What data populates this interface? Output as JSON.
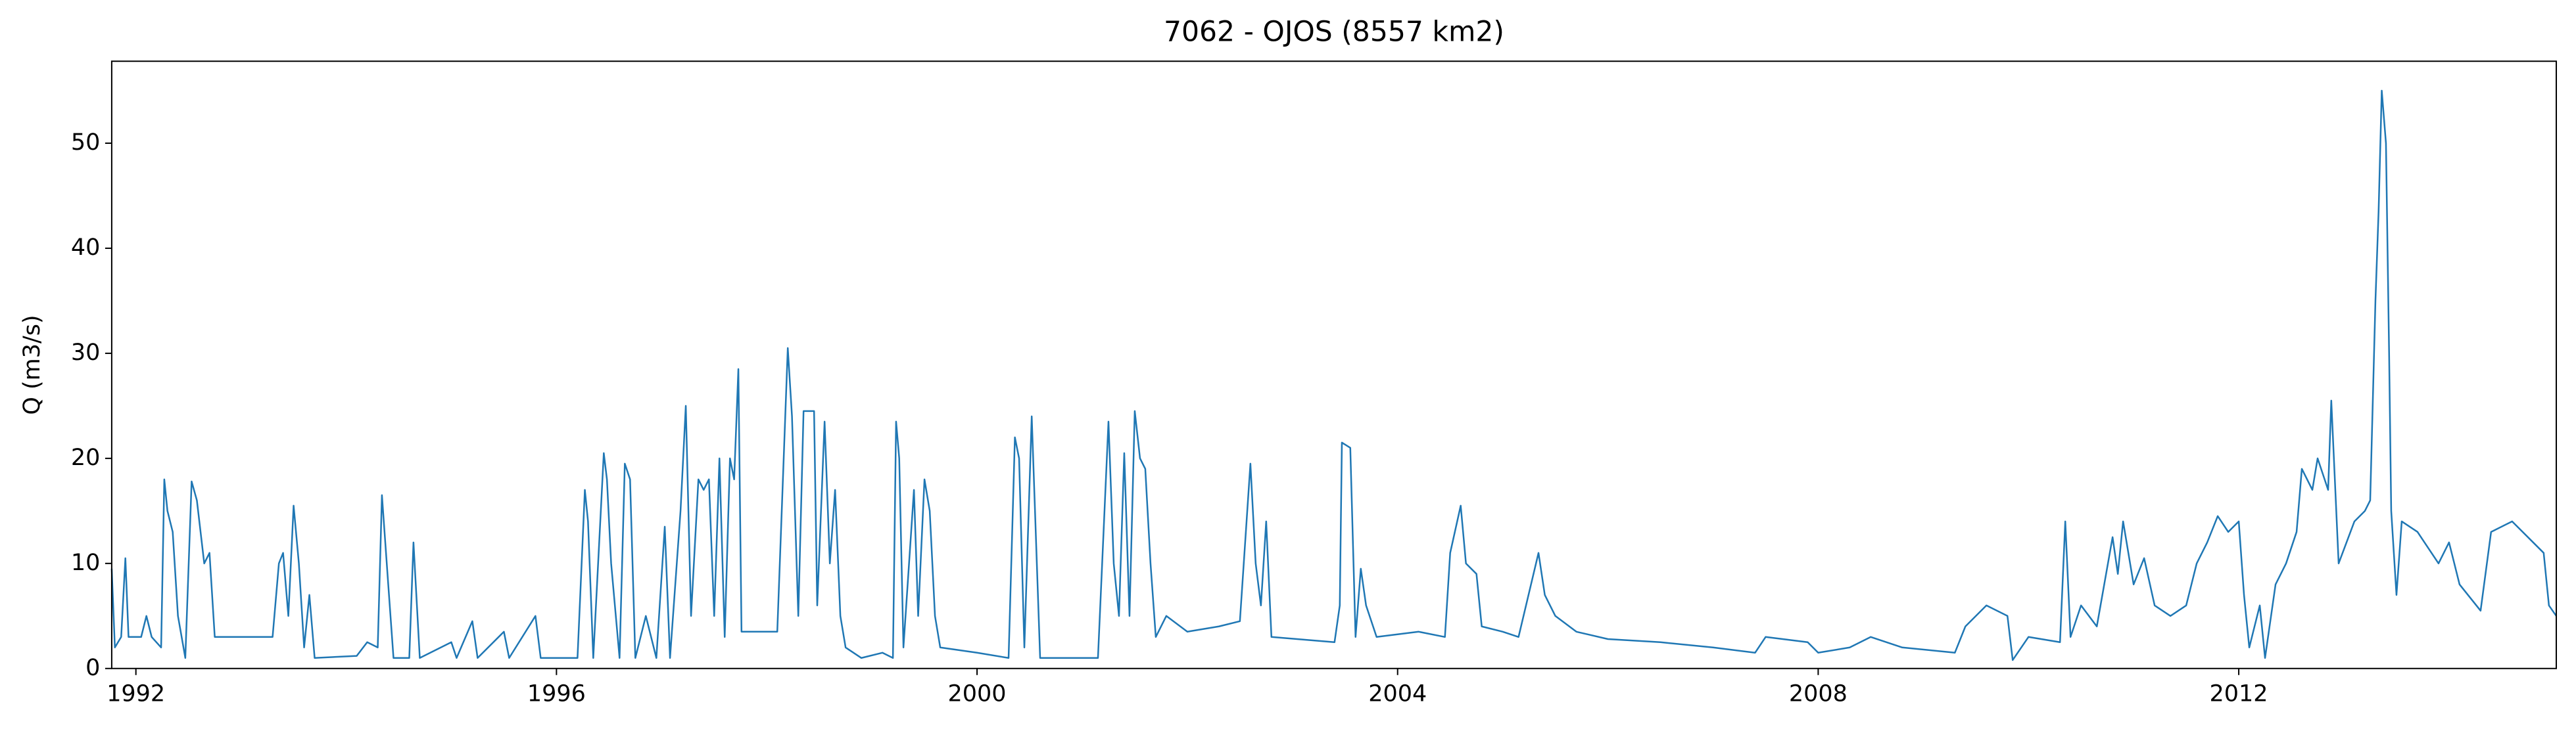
{
  "chart_data": {
    "type": "line",
    "title": "7062 - OJOS (8557 km2)",
    "ylabel": "Q (m3/s)",
    "x": [
      1991.77,
      1991.8,
      1991.86,
      1991.9,
      1991.93,
      1992.05,
      1992.1,
      1992.15,
      1992.24,
      1992.27,
      1992.3,
      1992.35,
      1992.4,
      1992.47,
      1992.53,
      1992.58,
      1992.65,
      1992.7,
      1992.75,
      1993.3,
      1993.36,
      1993.4,
      1993.45,
      1993.5,
      1993.55,
      1993.6,
      1993.65,
      1993.7,
      1994.1,
      1994.2,
      1994.3,
      1994.34,
      1994.4,
      1994.45,
      1994.6,
      1994.64,
      1994.7,
      1995,
      1995.05,
      1995.2,
      1995.25,
      1995.5,
      1995.55,
      1995.8,
      1995.85,
      1996.2,
      1996.27,
      1996.3,
      1996.35,
      1996.45,
      1996.48,
      1996.52,
      1996.6,
      1996.65,
      1996.7,
      1996.75,
      1996.85,
      1996.95,
      1997.03,
      1997.08,
      1997.18,
      1997.23,
      1997.28,
      1997.35,
      1997.4,
      1997.45,
      1997.5,
      1997.55,
      1997.6,
      1997.65,
      1997.69,
      1997.73,
      1997.76,
      1998.1,
      1998.2,
      1998.24,
      1998.3,
      1998.35,
      1998.45,
      1998.48,
      1998.55,
      1998.6,
      1998.65,
      1998.7,
      1998.75,
      1998.9,
      1999.1,
      1999.2,
      1999.23,
      1999.26,
      1999.3,
      1999.4,
      1999.44,
      1999.5,
      1999.55,
      1999.6,
      1999.65,
      2000,
      2000.3,
      2000.36,
      2000.4,
      2000.45,
      2000.52,
      2000.6,
      2001.15,
      2001.25,
      2001.3,
      2001.35,
      2001.4,
      2001.45,
      2001.5,
      2001.55,
      2001.6,
      2001.65,
      2001.7,
      2001.8,
      2002,
      2002.3,
      2002.5,
      2002.6,
      2002.65,
      2002.7,
      2002.75,
      2002.8,
      2003.4,
      2003.45,
      2003.47,
      2003.55,
      2003.6,
      2003.65,
      2003.7,
      2003.8,
      2004.2,
      2004.45,
      2004.5,
      2004.6,
      2004.65,
      2004.75,
      2004.8,
      2005,
      2005.15,
      2005.34,
      2005.4,
      2005.5,
      2005.7,
      2006,
      2006.5,
      2007,
      2007.4,
      2007.5,
      2007.9,
      2008,
      2008.3,
      2008.5,
      2008.8,
      2009.3,
      2009.4,
      2009.6,
      2009.8,
      2009.85,
      2010,
      2010.3,
      2010.35,
      2010.4,
      2010.5,
      2010.65,
      2010.8,
      2010.85,
      2010.9,
      2011,
      2011.1,
      2011.2,
      2011.35,
      2011.5,
      2011.6,
      2011.7,
      2011.8,
      2011.9,
      2012,
      2012.05,
      2012.1,
      2012.2,
      2012.25,
      2012.35,
      2012.45,
      2012.55,
      2012.6,
      2012.7,
      2012.75,
      2012.85,
      2012.88,
      2012.95,
      2013.1,
      2013.2,
      2013.25,
      2013.3,
      2013.33,
      2013.36,
      2013.4,
      2013.43,
      2013.45,
      2013.5,
      2013.55,
      2013.7,
      2013.9,
      2014,
      2014.1,
      2014.3,
      2014.4,
      2014.6,
      2014.8,
      2014.9,
      2014.95,
      2015.02
    ],
    "series": [
      {
        "color": "#1f77b4",
        "values": [
          9.5,
          2,
          3,
          10.5,
          3,
          3,
          5,
          3,
          2,
          18,
          15,
          13,
          5,
          1,
          17.8,
          16,
          10,
          11,
          3,
          3,
          10,
          11,
          5,
          15.5,
          10,
          2,
          7,
          1,
          1.2,
          2.5,
          2,
          16.5,
          8,
          1,
          1,
          12,
          1,
          2.5,
          1,
          4.5,
          1,
          3.5,
          1,
          5,
          1,
          1,
          17,
          14,
          1,
          20.5,
          18,
          10,
          1,
          19.5,
          18,
          1,
          5,
          1,
          13.5,
          1,
          15,
          25,
          5,
          18,
          17,
          18,
          5,
          20,
          3,
          20,
          18,
          28.5,
          3.5,
          3.5,
          30.5,
          24,
          5,
          24.5,
          24.5,
          6,
          23.5,
          10,
          17,
          5,
          2,
          1,
          1.5,
          1,
          23.5,
          20,
          2,
          17,
          5,
          18,
          15,
          5,
          2,
          1.5,
          1,
          22,
          20,
          2,
          24,
          1,
          1,
          23.5,
          10,
          5,
          20.5,
          5,
          24.5,
          20,
          19,
          10,
          3,
          5,
          3.5,
          4,
          4.5,
          19.5,
          10,
          6,
          14,
          3,
          2.5,
          6,
          21.5,
          21,
          3,
          9.5,
          6,
          3,
          3.5,
          3,
          11,
          15.5,
          10,
          9,
          4,
          3.5,
          3,
          11,
          7,
          5,
          3.5,
          2.8,
          2.5,
          2,
          1.5,
          3,
          2.5,
          1.5,
          2,
          3,
          2,
          1.5,
          4,
          6,
          5,
          0.8,
          3,
          2.5,
          14,
          3,
          6,
          4,
          12.5,
          9,
          14,
          8,
          10.5,
          6,
          5,
          6,
          10,
          12,
          14.5,
          13,
          14,
          7,
          2,
          6,
          1,
          8,
          10,
          13,
          19,
          17,
          20,
          17,
          25.5,
          10,
          14,
          15,
          16,
          35,
          43.5,
          55,
          50,
          30,
          15,
          7,
          14,
          13,
          10,
          12,
          8,
          5.5,
          13,
          14,
          12,
          11,
          6,
          5
        ]
      }
    ],
    "xlim": [
      1991.77,
      2015.02
    ],
    "xticks": [
      1992,
      1996,
      2000,
      2004,
      2008,
      2012
    ],
    "ylim": [
      0,
      57.8
    ],
    "yticks": [
      0,
      10,
      20,
      30,
      40,
      50
    ],
    "grid": false
  }
}
